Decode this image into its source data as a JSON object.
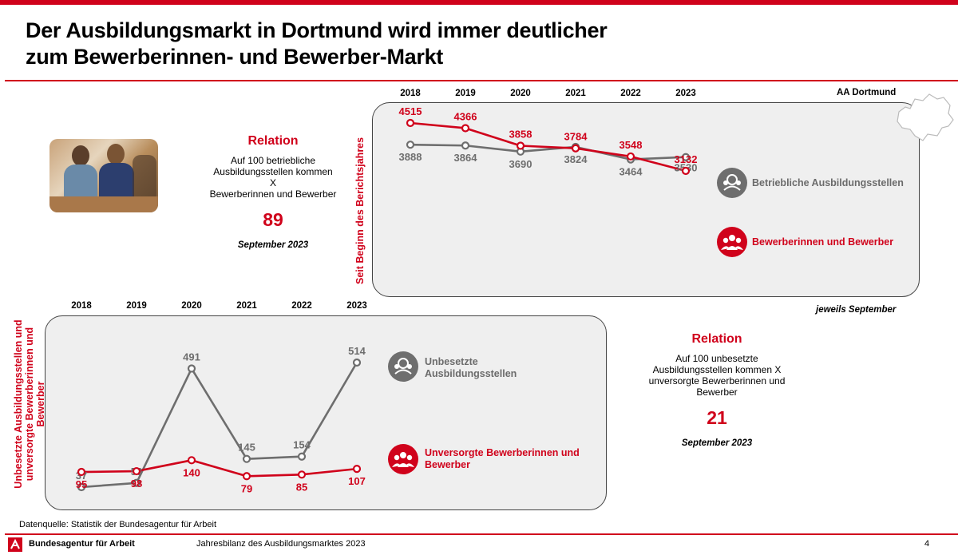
{
  "title_line1": "Der Ausbildungsmarkt in Dortmund wird immer deutlicher",
  "title_line2": "zum Bewerberinnen- und Bewerber-Markt",
  "region": "AA Dortmund",
  "relation_top": {
    "heading": "Relation",
    "text": [
      "Auf 100 betriebliche",
      "Ausbildungsstellen kommen X",
      "Bewerberinnen und Bewerber"
    ],
    "value": "89",
    "date": "September 2023"
  },
  "relation_bottom": {
    "heading": "Relation",
    "text": [
      "Auf 100 unbesetzte",
      "Ausbildungsstellen kommen X",
      "unversorgte Bewerberinnen und",
      "Bewerber"
    ],
    "value": "21",
    "date": "September 2023"
  },
  "top_axis_label": "Seit Beginn des Berichtsjahres",
  "bottom_axis_label": [
    "Unbesetzte Ausbildungsstellen und",
    "unversorgte Bewerberinnen und",
    "Bewerber"
  ],
  "note": "jeweils September",
  "legend_top": {
    "stellen": "Betriebliche Ausbildungsstellen",
    "bewerber": "Bewerberinnen und Bewerber"
  },
  "legend_bottom": {
    "stellen": [
      "Unbesetzte",
      "Ausbildungsstellen"
    ],
    "bewerber": [
      "Unversorgte Bewerberinnen und",
      "Bewerber"
    ]
  },
  "source": "Datenquelle: Statistik der Bundesagentur für Arbeit",
  "footer": {
    "org": "Bundesagentur für Arbeit",
    "center": "Jahresbilanz des Ausbildungsmarktes 2023",
    "page": "4"
  },
  "colors": {
    "red": "#d0021b",
    "gray": "#6e6e6e"
  },
  "chart_data": [
    {
      "type": "line",
      "x": [
        "2018",
        "2019",
        "2020",
        "2021",
        "2022",
        "2023"
      ],
      "series": [
        {
          "name": "Betriebliche Ausbildungsstellen",
          "color": "#6e6e6e",
          "values": [
            3888,
            3864,
            3690,
            3824,
            3464,
            3530
          ]
        },
        {
          "name": "Bewerberinnen und Bewerber",
          "color": "#d0021b",
          "values": [
            4515,
            4366,
            3858,
            3784,
            3548,
            3132
          ]
        }
      ],
      "ylabel": "Seit Beginn des Berichtsjahres"
    },
    {
      "type": "line",
      "x": [
        "2018",
        "2019",
        "2020",
        "2021",
        "2022",
        "2023"
      ],
      "series": [
        {
          "name": "Unbesetzte Ausbildungsstellen",
          "color": "#6e6e6e",
          "values": [
            37,
            53,
            491,
            145,
            154,
            514
          ]
        },
        {
          "name": "Unversorgte Bewerberinnen und Bewerber",
          "color": "#d0021b",
          "values": [
            95,
            98,
            140,
            79,
            85,
            107
          ]
        }
      ],
      "ylabel": "Unbesetzte Ausbildungsstellen und unversorgte Bewerberinnen und Bewerber"
    }
  ]
}
